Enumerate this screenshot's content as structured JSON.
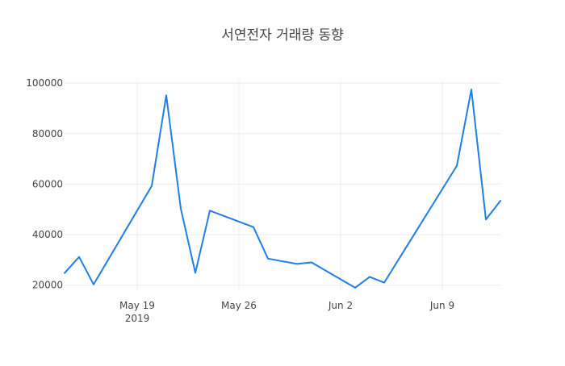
{
  "chart_data": {
    "type": "line",
    "title": "서연전자 거래량 동향",
    "xlabel": "",
    "ylabel": "",
    "x_start": "2019-05-14",
    "x_range": [
      "2019-05-14",
      "2019-06-13"
    ],
    "ylim": [
      18000,
      101000
    ],
    "y_ticks": [
      20000,
      40000,
      60000,
      80000,
      100000
    ],
    "y_tick_labels": [
      "20000",
      "40000",
      "60000",
      "80000",
      "100000"
    ],
    "x_ticks": [
      "2019-05-19",
      "2019-05-26",
      "2019-06-02",
      "2019-06-09"
    ],
    "x_tick_labels": [
      "May 19",
      "May 26",
      "Jun 2",
      "Jun 9"
    ],
    "x_tick_sublabel": "2019",
    "grid": true,
    "color": "#1f7fe6",
    "series": [
      {
        "name": "",
        "x": [
          "2019-05-14",
          "2019-05-15",
          "2019-05-16",
          "2019-05-20",
          "2019-05-21",
          "2019-05-22",
          "2019-05-23",
          "2019-05-24",
          "2019-05-27",
          "2019-05-28",
          "2019-05-30",
          "2019-05-31",
          "2019-06-03",
          "2019-06-04",
          "2019-06-05",
          "2019-06-10",
          "2019-06-11",
          "2019-06-12",
          "2019-06-13"
        ],
        "y": [
          24800,
          31200,
          20300,
          59300,
          95200,
          50300,
          24900,
          49500,
          43000,
          30500,
          28400,
          29000,
          19000,
          23300,
          21000,
          67300,
          97500,
          46000,
          53400
        ]
      }
    ]
  }
}
